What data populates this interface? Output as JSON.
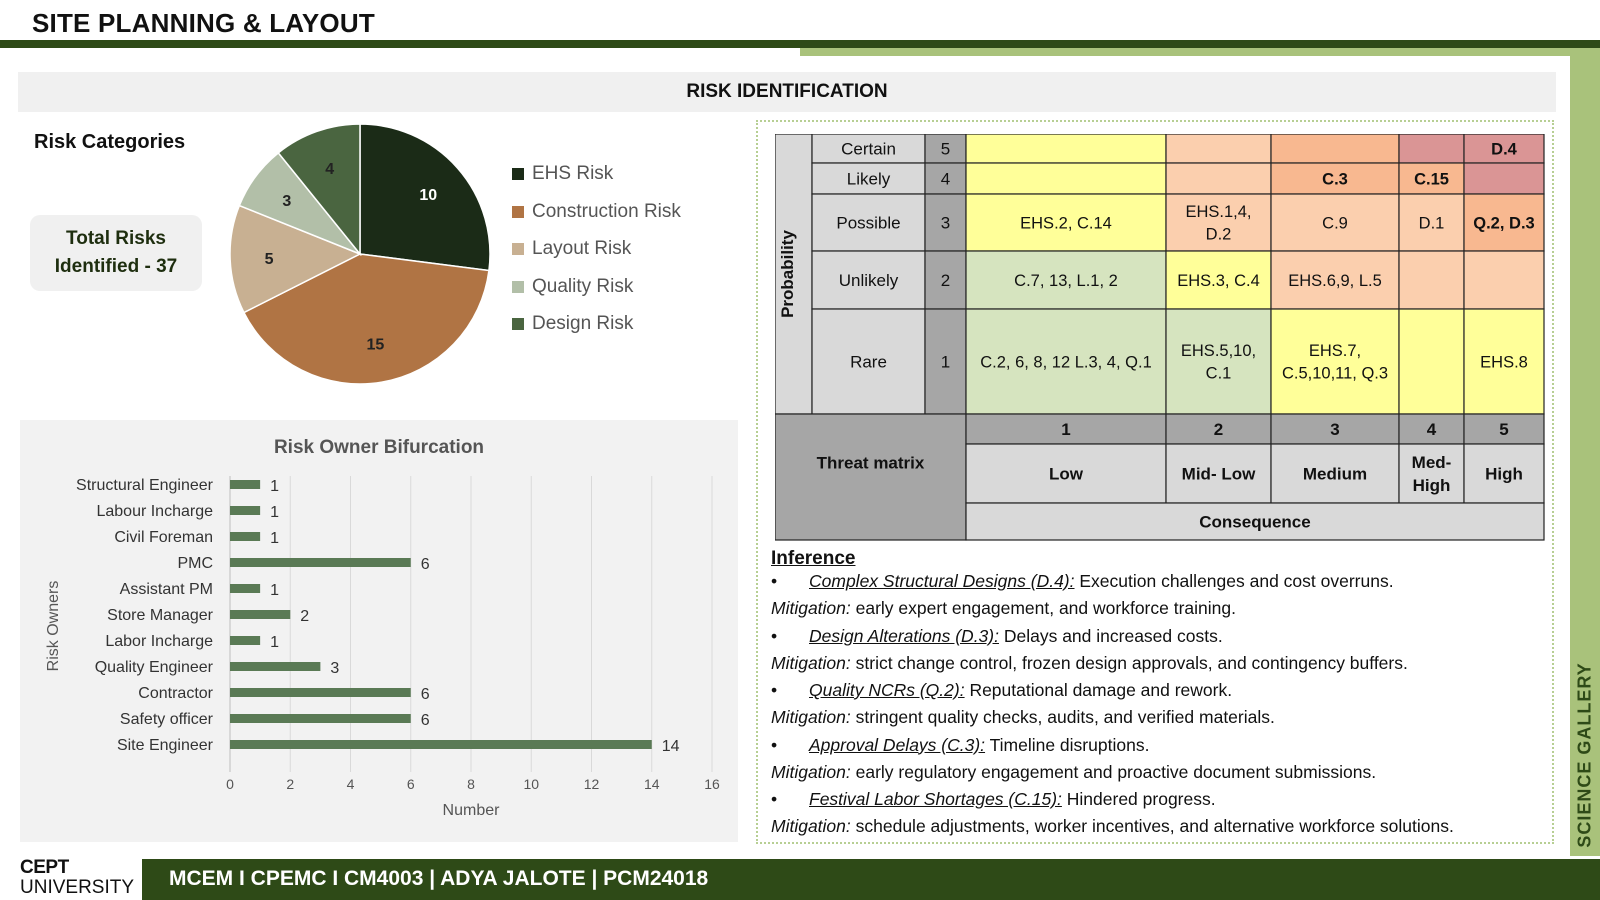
{
  "header": {
    "title": "SITE PLANNING & LAYOUT",
    "banner": "RISK IDENTIFICATION",
    "side_label": "SCIENCE GALLERY"
  },
  "categories": {
    "title": "Risk Categories",
    "total_label": "Total Risks\nIdentified - 37"
  },
  "colors": {
    "dark_green": "#2e4a17",
    "light_green": "#a9c27b"
  },
  "chart_data": [
    {
      "type": "pie",
      "title": "",
      "labels": [
        "EHS Risk",
        "Construction Risk",
        "Layout  Risk",
        "Quality Risk",
        "Design Risk"
      ],
      "values": [
        10,
        15,
        5,
        3,
        4
      ],
      "colors": [
        "#1b2b17",
        "#b07444",
        "#c8b092",
        "#b2bfa8",
        "#4a6540"
      ],
      "legend": "right"
    },
    {
      "type": "bar",
      "orientation": "horizontal",
      "title": "Risk Owner Bifurcation",
      "xlabel": "Number",
      "ylabel": "Risk Owners",
      "categories": [
        "Structural Engineer",
        "Labour Incharge",
        "Civil Foreman",
        "PMC",
        "Assistant PM",
        "Store Manager",
        "Labor Incharge",
        "Quality Engineer",
        "Contractor",
        "Safety officer",
        "Site Engineer"
      ],
      "values": [
        1,
        1,
        1,
        6,
        1,
        2,
        1,
        3,
        6,
        6,
        14
      ],
      "xlim": [
        0,
        16
      ],
      "xticks": [
        0,
        2,
        4,
        6,
        8,
        10,
        12,
        14,
        16
      ],
      "grid": true,
      "color": "#5a7a55"
    }
  ],
  "matrix": {
    "prob_axis": "Probability",
    "rows": [
      {
        "label": "Certain",
        "num": "5",
        "cells": [
          "",
          "",
          "",
          "",
          "D.4"
        ]
      },
      {
        "label": "Likely",
        "num": "4",
        "cells": [
          "",
          "",
          "C.3",
          "C.15",
          ""
        ]
      },
      {
        "label": "Possible",
        "num": "3",
        "cells": [
          "EHS.2, C.14",
          "EHS.1,4,\nD.2",
          "C.9",
          "D.1",
          "Q.2, D.3"
        ]
      },
      {
        "label": "Unlikely",
        "num": "2",
        "cells": [
          "C.7, 13, L.1, 2",
          "EHS.3, C.4",
          "EHS.6,9, L.5",
          "",
          ""
        ]
      },
      {
        "label": "Rare",
        "num": "1",
        "cells": [
          "C.2, 6, 8, 12 L.3, 4, Q.1",
          "EHS.5,10,\nC.1",
          "EHS.7,\nC.5,10,11, Q.3",
          "",
          "EHS.8"
        ]
      }
    ],
    "col_nums": [
      "1",
      "2",
      "3",
      "4",
      "5"
    ],
    "col_labels": [
      "Low",
      "Mid- Low",
      "Medium",
      "Med-\nHigh",
      "High"
    ],
    "corner_label": "Threat matrix",
    "consequence_label": "Consequence"
  },
  "inference": {
    "title": "Inference",
    "items": [
      {
        "bullet": "•",
        "risk": "Complex Structural Designs (D.4):",
        "effect": " Execution challenges and cost overruns.",
        "mit_label": "Mitigation:",
        "mitigation": " early expert engagement, and workforce training."
      },
      {
        "bullet": "•",
        "risk": "Design Alterations (D.3):",
        "effect": " Delays and increased costs.",
        "mit_label": "Mitigation:",
        "mitigation": " strict change control, frozen design approvals, and contingency buffers."
      },
      {
        "bullet": "•",
        "risk": "Quality NCRs (Q.2):",
        "effect": " Reputational damage and rework.",
        "mit_label": "Mitigation:",
        "mitigation": " stringent quality checks, audits, and verified materials."
      },
      {
        "bullet": "•",
        "risk": "Approval Delays (C.3):",
        "effect": " Timeline disruptions.",
        "mit_label": "Mitigation:",
        "mitigation": " early regulatory engagement and proactive document submissions."
      },
      {
        "bullet": "•",
        "risk": "Festival Labor Shortages (C.15):",
        "effect": " Hindered progress.",
        "mit_label": "Mitigation:",
        "mitigation": " schedule adjustments, worker incentives, and alternative workforce solutions."
      }
    ]
  },
  "footer": {
    "logo_line1": "CEPT",
    "logo_line2": "UNIVERSITY",
    "text": "MCEM I CPEMC I CM4003 | ADYA JALOTE | PCM24018"
  }
}
